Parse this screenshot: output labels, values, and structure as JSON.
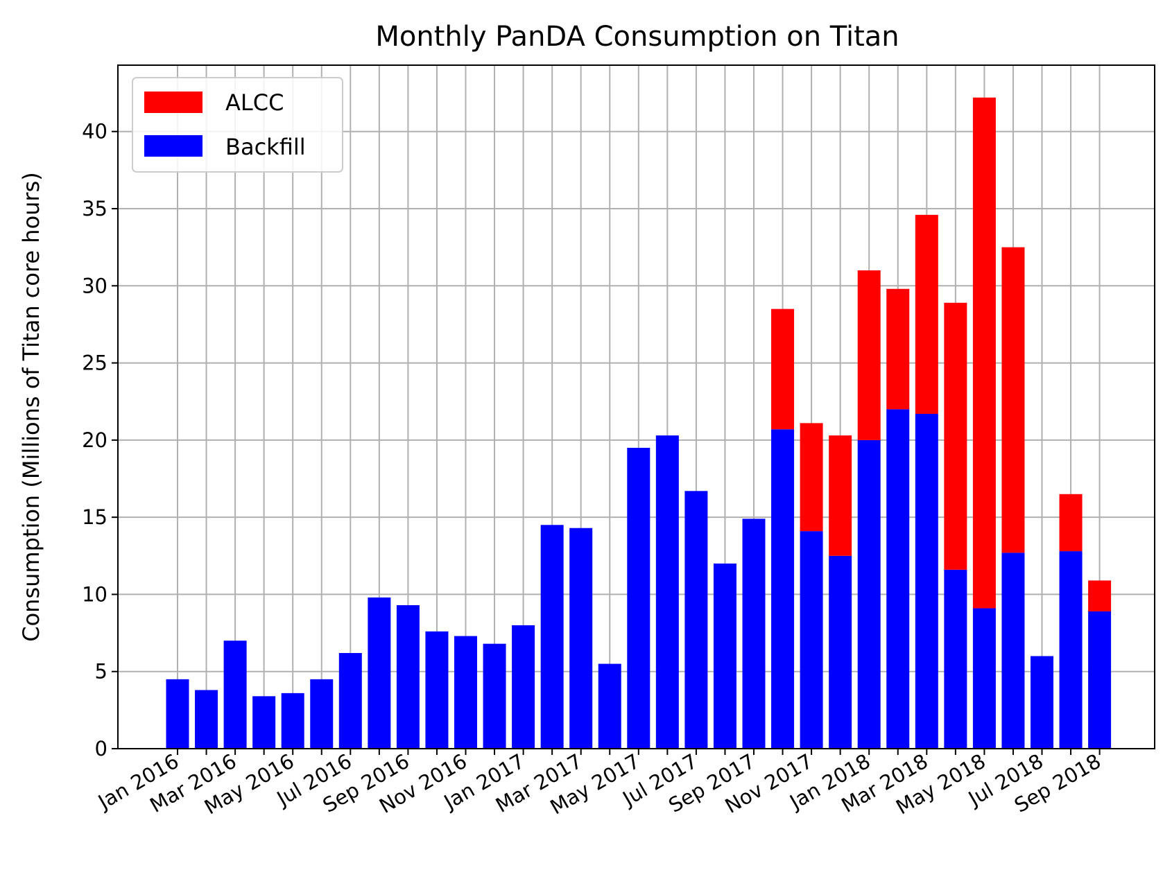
{
  "chart_data": {
    "type": "bar",
    "stacked": true,
    "title": "Monthly PanDA Consumption on Titan",
    "xlabel": "",
    "ylabel": "Consumption (Millions of Titan core hours)",
    "ylim": [
      0,
      44.3
    ],
    "yticks": [
      0,
      5,
      10,
      15,
      20,
      25,
      30,
      35,
      40
    ],
    "grid": true,
    "legend_position": "top-left",
    "x_tick_labels": [
      "Jan 2016",
      "Mar 2016",
      "May 2016",
      "Jul 2016",
      "Sep 2016",
      "Nov 2016",
      "Jan 2017",
      "Mar 2017",
      "May 2017",
      "Jul 2017",
      "Sep 2017",
      "Nov 2017",
      "Jan 2018",
      "Mar 2018",
      "May 2018",
      "Jul 2018",
      "Sep 2018"
    ],
    "categories": [
      "Jan 2016",
      "Feb 2016",
      "Mar 2016",
      "Apr 2016",
      "May 2016",
      "Jun 2016",
      "Jul 2016",
      "Aug 2016",
      "Sep 2016",
      "Oct 2016",
      "Nov 2016",
      "Dec 2016",
      "Jan 2017",
      "Feb 2017",
      "Mar 2017",
      "Apr 2017",
      "May 2017",
      "Jun 2017",
      "Jul 2017",
      "Aug 2017",
      "Sep 2017",
      "Oct 2017",
      "Nov 2017",
      "Dec 2017",
      "Jan 2018",
      "Feb 2018",
      "Mar 2018",
      "Apr 2018",
      "May 2018",
      "Jun 2018",
      "Jul 2018",
      "Aug 2018",
      "Sep 2018"
    ],
    "series": [
      {
        "name": "Backfill",
        "color": "#0000ff",
        "values": [
          4.5,
          3.8,
          7.0,
          3.4,
          3.6,
          4.5,
          6.2,
          9.8,
          9.3,
          7.6,
          7.3,
          6.8,
          8.0,
          14.5,
          14.3,
          5.5,
          19.5,
          20.3,
          16.7,
          12.0,
          14.9,
          20.7,
          14.1,
          12.5,
          20.0,
          22.0,
          21.7,
          11.6,
          9.1,
          12.7,
          6.0,
          12.8,
          8.9
        ]
      },
      {
        "name": "ALCC",
        "color": "#ff0000",
        "values": [
          0,
          0,
          0,
          0,
          0,
          0,
          0,
          0,
          0,
          0,
          0,
          0,
          0,
          0,
          0,
          0,
          0,
          0,
          0,
          0,
          0,
          7.8,
          7.0,
          7.8,
          11.0,
          7.8,
          12.9,
          17.3,
          33.1,
          19.8,
          0,
          3.7,
          2.0
        ]
      }
    ],
    "legend_order": [
      "ALCC",
      "Backfill"
    ]
  }
}
